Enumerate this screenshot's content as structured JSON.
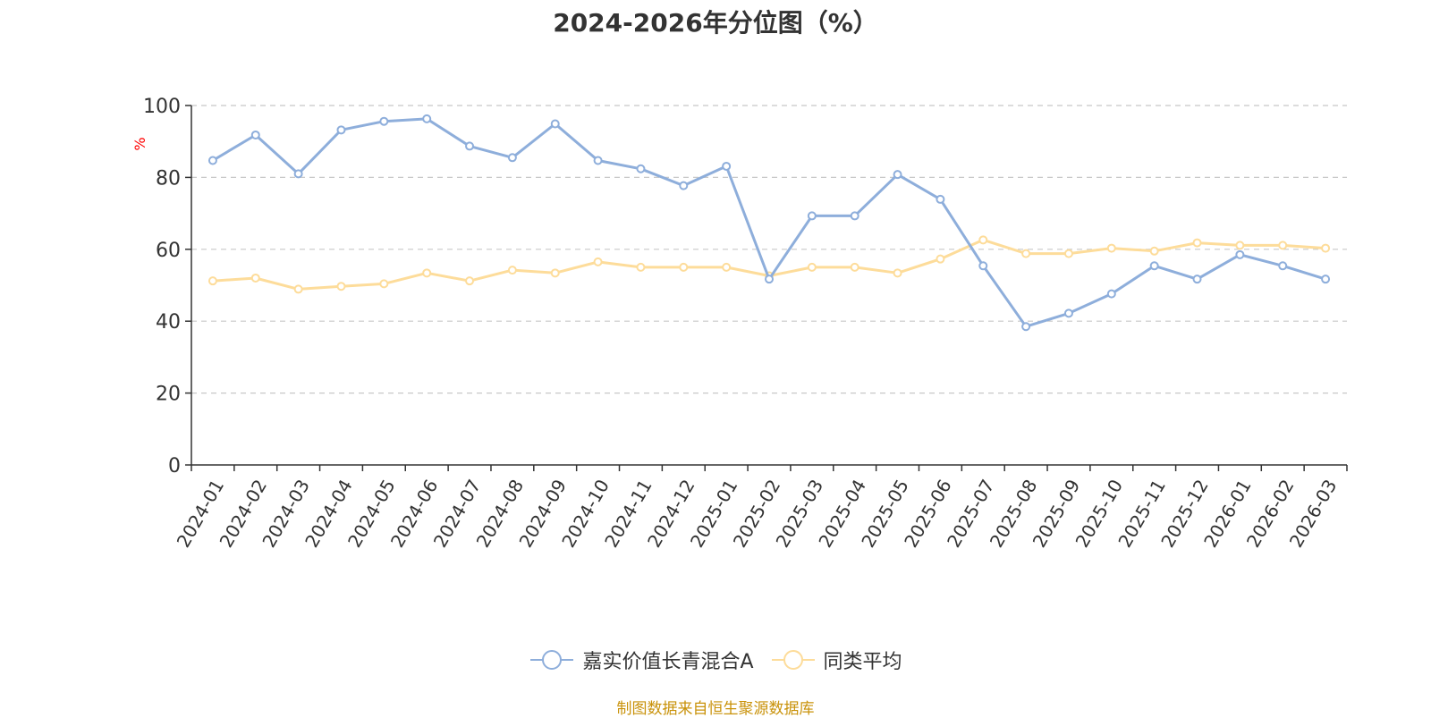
{
  "chart_data": {
    "type": "line",
    "title": "2024-2026年分位图（%）",
    "ylabel": "%",
    "ylim": [
      0,
      100
    ],
    "yticks": [
      0,
      20,
      40,
      60,
      80,
      100
    ],
    "grid": true,
    "legend_position": "bottom",
    "categories": [
      "2024-01",
      "2024-02",
      "2024-03",
      "2024-04",
      "2024-05",
      "2024-06",
      "2024-07",
      "2024-08",
      "2024-09",
      "2024-10",
      "2024-11",
      "2024-12",
      "2025-01",
      "2025-02",
      "2025-03",
      "2025-04",
      "2025-05",
      "2025-06",
      "2025-07",
      "2025-08",
      "2025-09",
      "2025-10",
      "2025-11",
      "2025-12",
      "2026-01",
      "2026-02",
      "2026-03"
    ],
    "series": [
      {
        "name": "嘉实价值长青混合A",
        "color": "#8eaedb",
        "values": [
          84.7,
          91.8,
          81.0,
          93.2,
          95.6,
          96.3,
          88.7,
          85.5,
          94.9,
          84.7,
          82.4,
          77.7,
          83.1,
          51.7,
          69.3,
          69.3,
          80.8,
          73.9,
          55.4,
          38.5,
          42.2,
          47.6,
          55.4,
          51.7,
          58.5,
          55.4,
          51.7
        ]
      },
      {
        "name": "同类平均",
        "color": "#fddc9a",
        "values": [
          51.2,
          52.0,
          48.9,
          49.7,
          50.4,
          53.4,
          51.2,
          54.2,
          53.4,
          56.5,
          55.0,
          55.0,
          55.0,
          52.6,
          55.0,
          55.0,
          53.4,
          57.3,
          62.6,
          58.8,
          58.8,
          60.3,
          59.5,
          61.8,
          61.1,
          61.1,
          60.3
        ]
      }
    ]
  },
  "footer": {
    "source": "制图数据来自恒生聚源数据库"
  }
}
